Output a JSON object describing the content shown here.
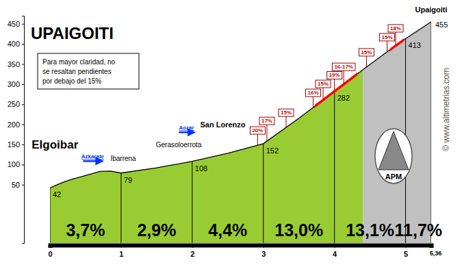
{
  "chart_data": {
    "type": "area",
    "title": "UPAIGOITI",
    "note": [
      "Para mayor claridad, no",
      "se resaltan pendientes",
      "por debajo del 15%"
    ],
    "xlim": [
      0,
      5.36
    ],
    "xticks": [
      0,
      1,
      2,
      3,
      4,
      5,
      {
        "value": 5.36,
        "label": "5,36"
      }
    ],
    "ylim": [
      -95,
      470
    ],
    "yticks": [
      50,
      100,
      150,
      200,
      250,
      300,
      350,
      400,
      450
    ],
    "series": [
      {
        "color": "#99cc33",
        "x": [
          0,
          0.1,
          0.2,
          0.3,
          0.5,
          0.7,
          0.85,
          1,
          1.5,
          2,
          2.5,
          3,
          3.5,
          4,
          4.4
        ],
        "values": [
          42,
          50,
          57,
          63,
          73,
          83,
          84,
          79,
          92,
          108,
          128,
          152,
          215,
          282,
          336
        ]
      },
      {
        "color": "#c0c0c0",
        "x": [
          4.4,
          4.7,
          5,
          5.36
        ],
        "values": [
          336,
          375,
          413,
          455
        ]
      }
    ],
    "segments": {
      "bounds": [
        0,
        1,
        2,
        3,
        4,
        5,
        5.36
      ],
      "values": [
        3.7,
        2.9,
        4.4,
        13.0,
        13.1,
        11.7
      ],
      "value_labels": [
        "3,7%",
        "2,9%",
        "4,4%",
        "13,0%",
        "13,1%",
        "11,7%"
      ]
    },
    "point_labels": {
      "x": [
        0,
        1,
        2,
        3,
        4,
        5,
        5.36
      ],
      "values": [
        42,
        79,
        108,
        152,
        282,
        413,
        455
      ]
    },
    "steep_sections": [
      [
        3.72,
        4.32
      ],
      [
        4.78,
        4.98
      ]
    ],
    "steep_flags": [
      {
        "x": 2.92,
        "label": "20%"
      },
      {
        "x": 3.05,
        "label": "17%"
      },
      {
        "x": 3.32,
        "label": "15%"
      },
      {
        "x": 3.7,
        "label": "16%"
      },
      {
        "x": 3.84,
        "label": "15%"
      },
      {
        "x": 4.0,
        "label": "19%"
      },
      {
        "x": 4.13,
        "label": "16-17%"
      },
      {
        "x": 4.45,
        "label": "15%"
      },
      {
        "x": 4.74,
        "label": "15%"
      },
      {
        "x": 4.86,
        "label": "18%"
      }
    ],
    "places": [
      {
        "x": 0.07,
        "label": "Elgoibar"
      },
      {
        "x": 1.03,
        "label": "Ibarrena"
      },
      {
        "x": 1.81,
        "label": "Gerasoloerrota"
      },
      {
        "x": 2.43,
        "label": "San Lorenzo"
      },
      {
        "x": 5.36,
        "label": "Upaigoiti"
      }
    ],
    "signs": [
      {
        "x": 0.6,
        "label": "Azkarate"
      },
      {
        "x": 1.92,
        "label": "Aozar"
      }
    ],
    "logo": "APM",
    "credit": "© www.altimetrias.com"
  }
}
